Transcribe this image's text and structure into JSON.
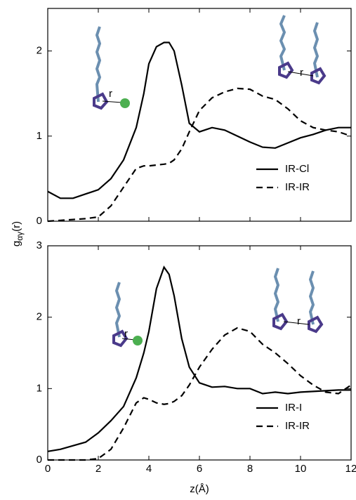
{
  "chart_data": [
    {
      "type": "line",
      "ylabel": "g",
      "ylabel_sub": "αγ",
      "ylabel_suffix": "(r)",
      "annotation": "r",
      "annotation_2": "r",
      "x": [
        0,
        0.5,
        1,
        1.5,
        2,
        2.5,
        3,
        3.5,
        3.8,
        4,
        4.3,
        4.6,
        4.8,
        5,
        5.3,
        5.6,
        6,
        6.5,
        7,
        7.5,
        8,
        8.5,
        9,
        9.5,
        10,
        10.5,
        11,
        11.5,
        12
      ],
      "xlim": [
        0,
        12
      ],
      "xticks": [
        0,
        2,
        4,
        6,
        8,
        10,
        12
      ],
      "xtick_labels": false,
      "ylim": [
        0,
        2.5
      ],
      "yticks": [
        0,
        1,
        2
      ],
      "legend": "lower right",
      "series": [
        {
          "name": "IR-Cl",
          "color": "#000000",
          "dash": false,
          "values": [
            0.35,
            0.27,
            0.27,
            0.32,
            0.37,
            0.5,
            0.72,
            1.1,
            1.5,
            1.85,
            2.05,
            2.1,
            2.1,
            2.0,
            1.6,
            1.15,
            1.05,
            1.1,
            1.07,
            1.0,
            0.93,
            0.87,
            0.86,
            0.92,
            0.98,
            1.02,
            1.07,
            1.1,
            1.1
          ]
        },
        {
          "name": "IR-IR",
          "color": "#000000",
          "dash": true,
          "values": [
            0,
            0.01,
            0.02,
            0.03,
            0.05,
            0.18,
            0.4,
            0.62,
            0.65,
            0.65,
            0.66,
            0.67,
            0.68,
            0.72,
            0.85,
            1.05,
            1.3,
            1.45,
            1.52,
            1.56,
            1.55,
            1.47,
            1.43,
            1.32,
            1.18,
            1.1,
            1.07,
            1.05,
            1.0
          ]
        }
      ]
    },
    {
      "type": "line",
      "xlabel": "z(Å)",
      "annotation": "r",
      "annotation_2": "r",
      "x": [
        0,
        0.5,
        1,
        1.5,
        2,
        2.5,
        3,
        3.5,
        3.8,
        4,
        4.3,
        4.6,
        4.8,
        5,
        5.3,
        5.6,
        6,
        6.5,
        7,
        7.5,
        8,
        8.5,
        9,
        9.5,
        10,
        10.5,
        11,
        11.5,
        12
      ],
      "xlim": [
        0,
        12
      ],
      "xticks": [
        0,
        2,
        4,
        6,
        8,
        10,
        12
      ],
      "xtick_labels": true,
      "ylim": [
        0,
        3
      ],
      "yticks": [
        0,
        1,
        2,
        3
      ],
      "legend": "lower right",
      "series": [
        {
          "name": "IR-I",
          "color": "#000000",
          "dash": false,
          "values": [
            0.12,
            0.15,
            0.2,
            0.25,
            0.38,
            0.55,
            0.75,
            1.15,
            1.5,
            1.8,
            2.4,
            2.7,
            2.6,
            2.3,
            1.7,
            1.3,
            1.08,
            1.02,
            1.03,
            1.0,
            1.0,
            0.93,
            0.95,
            0.93,
            0.95,
            0.96,
            0.97,
            0.98,
            0.98
          ]
        },
        {
          "name": "IR-IR",
          "color": "#000000",
          "dash": true,
          "values": [
            0,
            0,
            0,
            0,
            0.02,
            0.15,
            0.45,
            0.8,
            0.87,
            0.85,
            0.8,
            0.78,
            0.79,
            0.82,
            0.9,
            1.05,
            1.3,
            1.55,
            1.75,
            1.85,
            1.8,
            1.62,
            1.5,
            1.35,
            1.18,
            1.05,
            0.95,
            0.93,
            1.05
          ]
        }
      ]
    }
  ]
}
